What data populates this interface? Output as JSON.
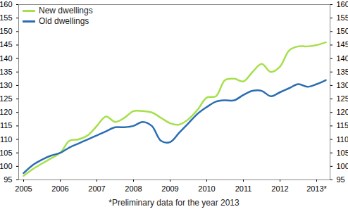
{
  "chart_data": {
    "type": "line",
    "caption": "*Preliminary data for the year 2013",
    "categories": [
      "2005",
      null,
      null,
      null,
      "2006",
      null,
      null,
      null,
      "2007",
      null,
      null,
      null,
      "2008",
      null,
      null,
      null,
      "2009",
      null,
      null,
      null,
      "2010",
      null,
      null,
      null,
      "2011",
      null,
      null,
      null,
      "2012",
      null,
      null,
      null,
      "2013*",
      null
    ],
    "series": [
      {
        "name": "New dwellings",
        "color": "#a6e04c",
        "values": [
          96.5,
          99,
          101,
          103,
          105,
          109.5,
          110,
          111.5,
          115,
          118.5,
          116.5,
          118,
          120.5,
          120.5,
          120,
          118,
          116,
          115.5,
          117.5,
          121,
          125.5,
          126,
          132,
          132.5,
          131.5,
          135,
          138,
          135,
          137,
          143,
          144.5,
          144.5,
          145,
          146
        ]
      },
      {
        "name": "Old dwellings",
        "color": "#2a6db3",
        "values": [
          97.5,
          100.5,
          102.5,
          104,
          105,
          107,
          108.5,
          110,
          111.5,
          113,
          114.5,
          114.5,
          115,
          116.5,
          115,
          109.5,
          109,
          112.5,
          116,
          119.5,
          122,
          124,
          124.5,
          124.5,
          126.5,
          128,
          128,
          126,
          127.5,
          129,
          130.5,
          129.5,
          130.5,
          132
        ]
      }
    ],
    "ylim": [
      95,
      160
    ],
    "yticks": [
      95,
      100,
      105,
      110,
      115,
      120,
      125,
      130,
      135,
      140,
      145,
      150,
      155,
      160
    ],
    "grid": false,
    "legend": "top-left"
  }
}
